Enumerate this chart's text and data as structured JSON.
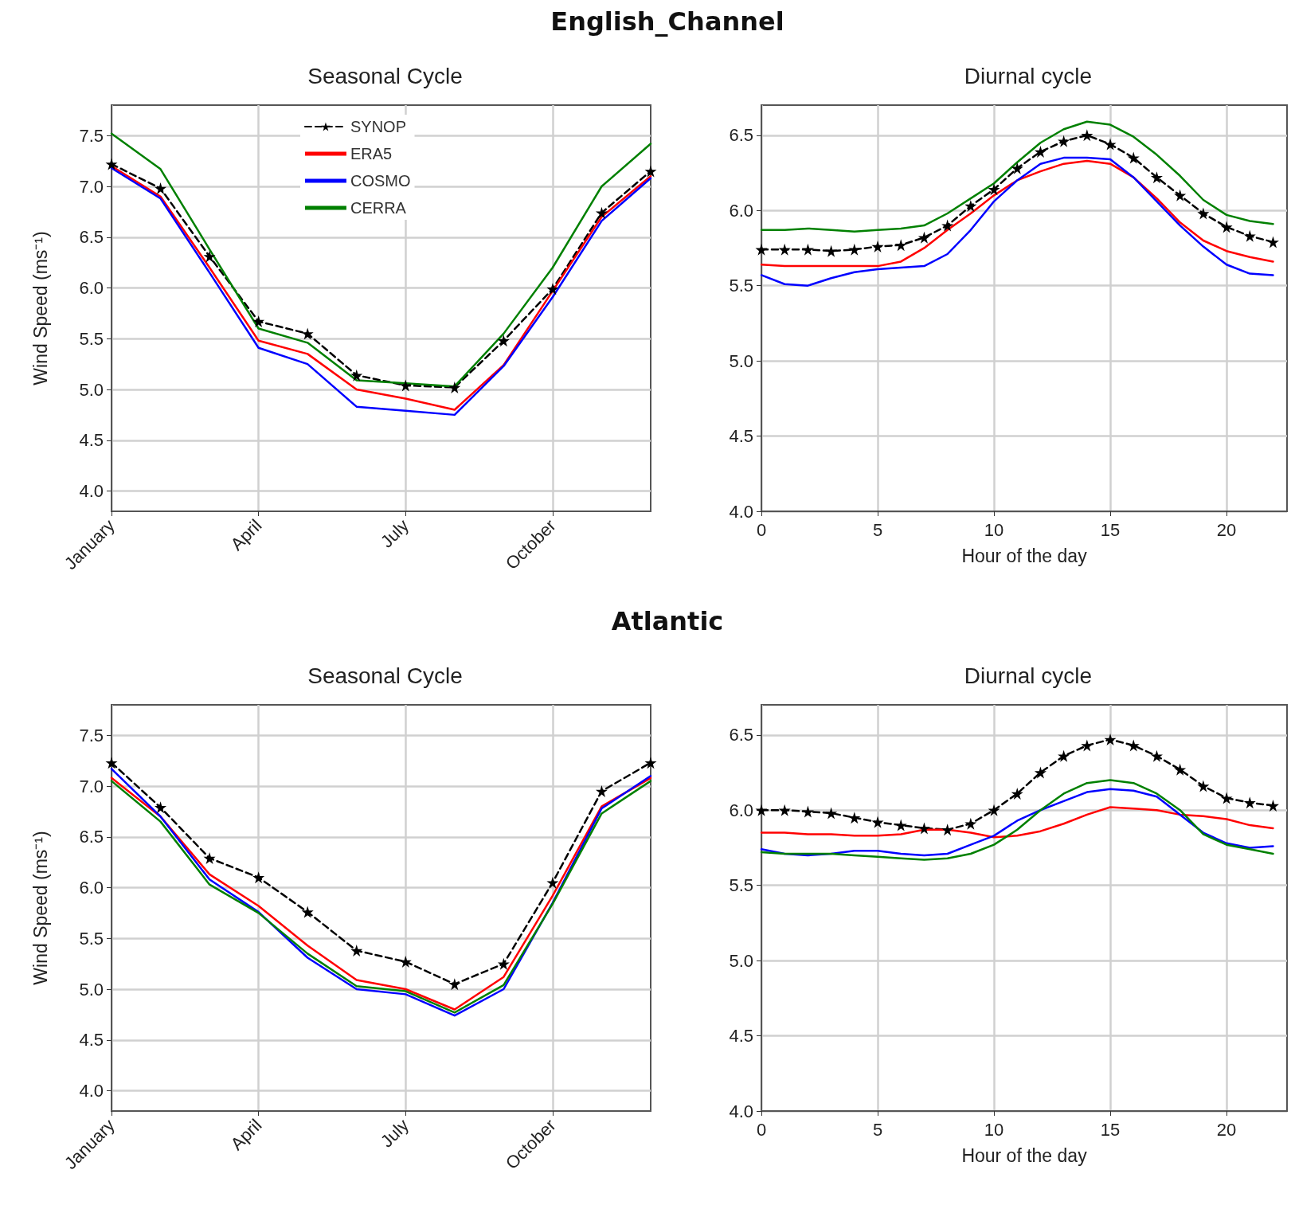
{
  "chart_data": [
    {
      "type": "line",
      "title": "Seasonal Cycle",
      "ylabel": "Wind Speed (ms⁻¹)",
      "annotations": [
        "English_Channel"
      ],
      "categories": [
        "January",
        null,
        null,
        "April",
        null,
        null,
        "July",
        null,
        null,
        "October",
        null,
        null
      ],
      "ylim": [
        3.8,
        7.8
      ],
      "yticks": [
        {
          "value": 4,
          "label": "4.0"
        },
        {
          "value": 4.5,
          "label": "4.5"
        },
        {
          "value": 5,
          "label": "5.0"
        },
        {
          "value": 5.5,
          "label": "5.5"
        },
        {
          "value": 6,
          "label": "6.0"
        },
        {
          "value": 6.5,
          "label": "6.5"
        },
        {
          "value": 7,
          "label": "7.0"
        },
        {
          "value": 7.5,
          "label": "7.5"
        }
      ],
      "grid": true,
      "legend": "top",
      "series": [
        {
          "name": "SYNOP",
          "color": "#000000",
          "marker": "star",
          "line_style": "dashed",
          "values": [
            7.22,
            6.98,
            6.31,
            5.67,
            5.55,
            5.14,
            5.04,
            5.02,
            5.48,
            5.99,
            6.74,
            7.15
          ]
        },
        {
          "name": "ERA5",
          "color": "#ff0000",
          "line_style": "solid",
          "marker": "none",
          "values": [
            7.2,
            6.9,
            6.2,
            5.48,
            5.35,
            5.0,
            4.91,
            4.8,
            5.24,
            5.97,
            6.7,
            7.1
          ]
        },
        {
          "name": "COSMO",
          "color": "#0000ff",
          "line_style": "solid",
          "marker": "none",
          "values": [
            7.18,
            6.88,
            6.15,
            5.41,
            5.25,
            4.83,
            4.79,
            4.75,
            5.23,
            5.91,
            6.66,
            7.08
          ]
        },
        {
          "name": "CERRA",
          "color": "#008000",
          "line_style": "solid",
          "marker": "none",
          "values": [
            7.52,
            7.17,
            6.38,
            5.6,
            5.46,
            5.09,
            5.06,
            5.03,
            5.55,
            6.2,
            7.0,
            7.42
          ]
        }
      ]
    },
    {
      "type": "line",
      "title": "Diurnal cycle",
      "xlabel": "Hour of the day",
      "x": [
        0,
        1,
        2,
        3,
        4,
        5,
        6,
        7,
        8,
        9,
        10,
        11,
        12,
        13,
        14,
        15,
        16,
        17,
        18,
        19,
        20,
        21,
        22
      ],
      "xlim": [
        0,
        22.6
      ],
      "xticks": [
        0,
        5,
        10,
        15,
        20
      ],
      "ylim": [
        4.0,
        6.7
      ],
      "yticks": [
        {
          "value": 4,
          "label": "4.0"
        },
        {
          "value": 4.5,
          "label": "4.5"
        },
        {
          "value": 5,
          "label": "5.0"
        },
        {
          "value": 5.5,
          "label": "5.5"
        },
        {
          "value": 6,
          "label": "6.0"
        },
        {
          "value": 6.5,
          "label": "6.5"
        }
      ],
      "grid": true,
      "series": [
        {
          "color": "#000000",
          "marker": "star",
          "line_style": "dashed",
          "values": [
            5.74,
            5.74,
            5.74,
            5.73,
            5.74,
            5.76,
            5.77,
            5.82,
            5.9,
            6.03,
            6.14,
            6.28,
            6.39,
            6.46,
            6.5,
            6.44,
            6.35,
            6.22,
            6.1,
            5.98,
            5.89,
            5.83,
            5.79
          ]
        },
        {
          "color": "#ff0000",
          "line_style": "solid",
          "marker": "none",
          "values": [
            5.64,
            5.63,
            5.63,
            5.63,
            5.63,
            5.63,
            5.66,
            5.75,
            5.87,
            5.98,
            6.1,
            6.2,
            6.26,
            6.31,
            6.33,
            6.31,
            6.22,
            6.08,
            5.92,
            5.8,
            5.73,
            5.69,
            5.66
          ]
        },
        {
          "color": "#0000ff",
          "line_style": "solid",
          "marker": "none",
          "values": [
            5.57,
            5.51,
            5.5,
            5.55,
            5.59,
            5.61,
            5.62,
            5.63,
            5.71,
            5.87,
            6.06,
            6.2,
            6.31,
            6.35,
            6.35,
            6.34,
            6.22,
            6.06,
            5.9,
            5.76,
            5.64,
            5.58,
            5.57
          ]
        },
        {
          "color": "#008000",
          "line_style": "solid",
          "marker": "none",
          "values": [
            5.87,
            5.87,
            5.88,
            5.87,
            5.86,
            5.87,
            5.88,
            5.9,
            5.98,
            6.08,
            6.18,
            6.32,
            6.45,
            6.54,
            6.59,
            6.57,
            6.49,
            6.37,
            6.23,
            6.07,
            5.97,
            5.93,
            5.91
          ]
        }
      ]
    },
    {
      "type": "line",
      "title": "Seasonal Cycle",
      "ylabel": "Wind Speed (ms⁻¹)",
      "annotations": [
        "Atlantic"
      ],
      "categories": [
        "January",
        null,
        null,
        "April",
        null,
        null,
        "July",
        null,
        null,
        "October",
        null,
        null
      ],
      "ylim": [
        3.8,
        7.8
      ],
      "yticks": [
        {
          "value": 4,
          "label": "4.0"
        },
        {
          "value": 4.5,
          "label": "4.5"
        },
        {
          "value": 5,
          "label": "5.0"
        },
        {
          "value": 5.5,
          "label": "5.5"
        },
        {
          "value": 6,
          "label": "6.0"
        },
        {
          "value": 6.5,
          "label": "6.5"
        },
        {
          "value": 7,
          "label": "7.0"
        },
        {
          "value": 7.5,
          "label": "7.5"
        }
      ],
      "grid": true,
      "series": [
        {
          "color": "#000000",
          "marker": "star",
          "line_style": "dashed",
          "values": [
            7.23,
            6.79,
            6.29,
            6.1,
            5.76,
            5.38,
            5.27,
            5.05,
            5.25,
            6.05,
            6.95,
            7.23
          ]
        },
        {
          "color": "#ff0000",
          "line_style": "solid",
          "marker": "none",
          "values": [
            7.08,
            6.7,
            6.13,
            5.82,
            5.43,
            5.09,
            5.0,
            4.8,
            5.12,
            5.92,
            6.8,
            7.08
          ]
        },
        {
          "color": "#0000ff",
          "line_style": "solid",
          "marker": "none",
          "values": [
            7.17,
            6.7,
            6.08,
            5.76,
            5.31,
            5.0,
            4.95,
            4.74,
            5.0,
            5.85,
            6.78,
            7.1
          ]
        },
        {
          "color": "#008000",
          "line_style": "solid",
          "marker": "none",
          "values": [
            7.05,
            6.65,
            6.03,
            5.75,
            5.35,
            5.03,
            4.98,
            4.77,
            5.04,
            5.84,
            6.73,
            7.05
          ]
        }
      ]
    },
    {
      "type": "line",
      "title": "Diurnal cycle",
      "xlabel": "Hour of the day",
      "x": [
        0,
        1,
        2,
        3,
        4,
        5,
        6,
        7,
        8,
        9,
        10,
        11,
        12,
        13,
        14,
        15,
        16,
        17,
        18,
        19,
        20,
        21,
        22
      ],
      "xlim": [
        0,
        22.6
      ],
      "xticks": [
        0,
        5,
        10,
        15,
        20
      ],
      "ylim": [
        4.0,
        6.7
      ],
      "yticks": [
        {
          "value": 4,
          "label": "4.0"
        },
        {
          "value": 4.5,
          "label": "4.5"
        },
        {
          "value": 5,
          "label": "5.0"
        },
        {
          "value": 5.5,
          "label": "5.5"
        },
        {
          "value": 6,
          "label": "6.0"
        },
        {
          "value": 6.5,
          "label": "6.5"
        }
      ],
      "grid": true,
      "series": [
        {
          "color": "#000000",
          "marker": "star",
          "line_style": "dashed",
          "values": [
            6.0,
            6.0,
            5.99,
            5.98,
            5.95,
            5.92,
            5.9,
            5.88,
            5.87,
            5.91,
            6.0,
            6.11,
            6.25,
            6.36,
            6.43,
            6.47,
            6.43,
            6.36,
            6.27,
            6.16,
            6.08,
            6.05,
            6.03
          ]
        },
        {
          "color": "#ff0000",
          "line_style": "solid",
          "marker": "none",
          "values": [
            5.85,
            5.85,
            5.84,
            5.84,
            5.83,
            5.83,
            5.84,
            5.87,
            5.87,
            5.85,
            5.82,
            5.83,
            5.86,
            5.91,
            5.97,
            6.02,
            6.01,
            6.0,
            5.97,
            5.96,
            5.94,
            5.9,
            5.88
          ]
        },
        {
          "color": "#0000ff",
          "line_style": "solid",
          "marker": "none",
          "values": [
            5.74,
            5.71,
            5.7,
            5.71,
            5.73,
            5.73,
            5.71,
            5.7,
            5.71,
            5.77,
            5.83,
            5.93,
            6.0,
            6.06,
            6.12,
            6.14,
            6.13,
            6.09,
            5.97,
            5.85,
            5.78,
            5.75,
            5.76
          ]
        },
        {
          "color": "#008000",
          "line_style": "solid",
          "marker": "none",
          "values": [
            5.72,
            5.71,
            5.71,
            5.71,
            5.7,
            5.69,
            5.68,
            5.67,
            5.68,
            5.71,
            5.77,
            5.87,
            6.0,
            6.11,
            6.18,
            6.2,
            6.18,
            6.11,
            6.0,
            5.84,
            5.77,
            5.74,
            5.71
          ]
        }
      ]
    }
  ]
}
